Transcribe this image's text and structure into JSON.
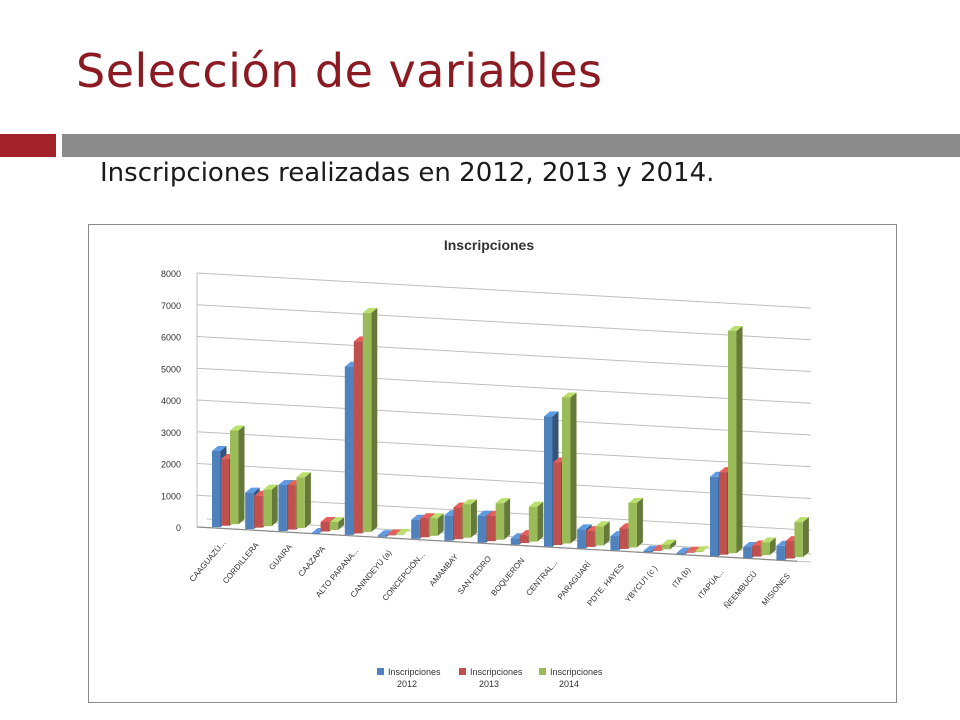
{
  "slide": {
    "title": "Selección de variables",
    "subtitle": "Inscripciones realizadas en 2012, 2013 y 2014."
  },
  "colors": {
    "title": "#8b1a22",
    "accent_bar": "#a32128",
    "rule_bar": "#8c8c8c",
    "series_2012": "#4f81bd",
    "series_2013": "#c0504d",
    "series_2014": "#9bbb59"
  },
  "chart_data": {
    "type": "bar",
    "style": "3d-clustered-column",
    "title": "Inscripciones",
    "xlabel": "",
    "ylabel": "",
    "ylim": [
      0,
      8000
    ],
    "yticks": [
      0,
      1000,
      2000,
      3000,
      4000,
      5000,
      6000,
      7000,
      8000
    ],
    "grid": true,
    "legend_position": "bottom",
    "categories": [
      "CAAGUAZÚ...",
      "CORDILLERA",
      "GUAIRA",
      "CAAZAPA",
      "ALTO PARANA...",
      "CANINDEYÚ (a)",
      "CONCEPCIÓN...",
      "AMAMBAY",
      "SAN PEDRO",
      "BOQUERON",
      "CENTRAL...",
      "PARAGUARÍ",
      "PDTE. HAYES",
      "YBYCU'I (c )",
      "ITA (b)",
      "ITAPÚA...",
      "ÑEEMBUCÚ",
      "MISIONES"
    ],
    "series": [
      {
        "name": "Inscripciones 2012",
        "legend_lines": [
          "Inscripciones",
          "2012"
        ],
        "color": "#4f81bd",
        "values": [
          2400,
          1150,
          1450,
          0,
          5300,
          50,
          600,
          800,
          850,
          200,
          4100,
          600,
          450,
          50,
          50,
          2500,
          350,
          450
        ]
      },
      {
        "name": "Inscripciones 2013",
        "legend_lines": [
          "Inscripciones",
          "2013"
        ],
        "color": "#c0504d",
        "values": [
          2100,
          1000,
          1400,
          300,
          6050,
          30,
          600,
          1000,
          800,
          250,
          2600,
          500,
          650,
          30,
          30,
          2600,
          350,
          550
        ]
      },
      {
        "name": "Inscripciones 2014",
        "legend_lines": [
          "Inscripciones",
          "2014"
        ],
        "color": "#9bbb59",
        "values": [
          2950,
          1150,
          1600,
          250,
          6900,
          0,
          550,
          1050,
          1150,
          1100,
          4600,
          600,
          1400,
          150,
          0,
          7000,
          400,
          1100
        ]
      }
    ]
  }
}
